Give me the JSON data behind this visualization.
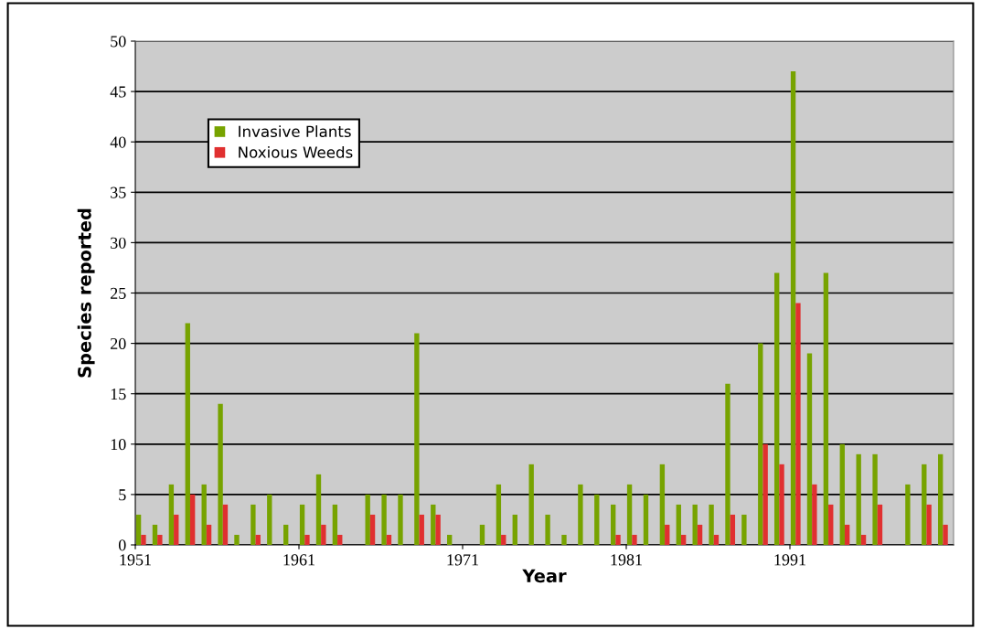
{
  "chart_data": {
    "type": "bar",
    "xlabel": "Year",
    "ylabel": "Species reported",
    "x": [
      1951,
      1952,
      1953,
      1954,
      1955,
      1956,
      1957,
      1958,
      1959,
      1960,
      1961,
      1962,
      1963,
      1964,
      1965,
      1966,
      1967,
      1968,
      1969,
      1970,
      1971,
      1972,
      1973,
      1974,
      1975,
      1976,
      1977,
      1978,
      1979,
      1980,
      1981,
      1982,
      1983,
      1984,
      1985,
      1986,
      1987,
      1988,
      1989,
      1990,
      1991,
      1992,
      1993,
      1994,
      1995,
      1996,
      1997,
      1998,
      1999,
      2000
    ],
    "series": [
      {
        "name": "Invasive Plants",
        "color": "#77a300",
        "values": [
          3,
          2,
          6,
          22,
          6,
          14,
          1,
          4,
          5,
          2,
          4,
          7,
          4,
          0,
          5,
          5,
          5,
          21,
          4,
          1,
          0,
          2,
          6,
          3,
          8,
          3,
          1,
          6,
          5,
          4,
          6,
          5,
          8,
          4,
          4,
          4,
          16,
          3,
          20,
          27,
          47,
          19,
          27,
          10,
          9,
          9,
          0,
          6,
          8,
          9
        ]
      },
      {
        "name": "Noxious Weeds",
        "color": "#e03030",
        "values": [
          1,
          1,
          3,
          5,
          2,
          4,
          0,
          1,
          0,
          0,
          1,
          2,
          1,
          0,
          3,
          1,
          0,
          3,
          3,
          0,
          0,
          0,
          1,
          0,
          0,
          0,
          0,
          0,
          0,
          1,
          1,
          0,
          2,
          1,
          2,
          1,
          3,
          0,
          10,
          8,
          24,
          6,
          4,
          2,
          1,
          4,
          0,
          0,
          4,
          2
        ]
      }
    ],
    "xlim": [
      1951,
      2001
    ],
    "xticks": [
      1951,
      1961,
      1971,
      1981,
      1991
    ],
    "ylim": [
      0,
      50
    ],
    "yticks": [
      0,
      5,
      10,
      15,
      20,
      25,
      30,
      35,
      40,
      45,
      50
    ],
    "grid": "y",
    "legend": "top left"
  }
}
